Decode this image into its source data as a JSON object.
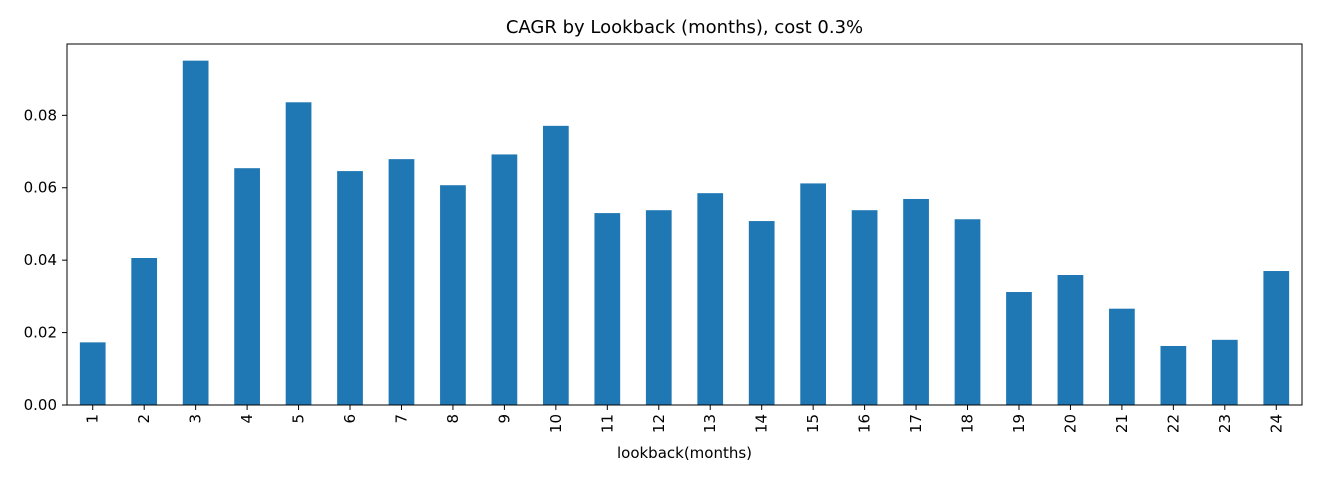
{
  "chart_data": {
    "type": "bar",
    "title": "CAGR by Lookback (months), cost 0.3%",
    "xlabel": "lookback(months)",
    "ylabel": "",
    "categories": [
      "1",
      "2",
      "3",
      "4",
      "5",
      "6",
      "7",
      "8",
      "9",
      "10",
      "11",
      "12",
      "13",
      "14",
      "15",
      "16",
      "17",
      "18",
      "19",
      "20",
      "21",
      "22",
      "23",
      "24"
    ],
    "values": [
      0.0173,
      0.0406,
      0.0951,
      0.0654,
      0.0836,
      0.0646,
      0.0679,
      0.0607,
      0.0692,
      0.0771,
      0.053,
      0.0538,
      0.0585,
      0.0508,
      0.0612,
      0.0538,
      0.0569,
      0.0513,
      0.0312,
      0.0359,
      0.0266,
      0.0163,
      0.018,
      0.037
    ],
    "ylim": [
      0,
      0.0997
    ],
    "yticks": [
      "0.00",
      "0.02",
      "0.04",
      "0.06",
      "0.08"
    ],
    "ytick_values": [
      0,
      0.02,
      0.04,
      0.06,
      0.08
    ],
    "grid": false,
    "legend": "none",
    "bar_color": "#1f77b4"
  }
}
